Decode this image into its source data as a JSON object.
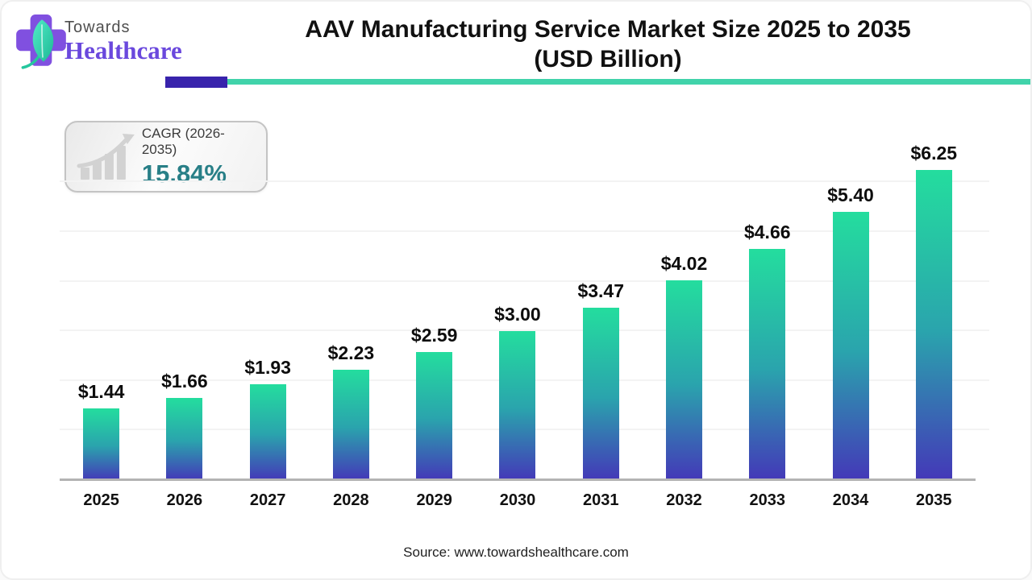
{
  "brand": {
    "name_line1": "Towards",
    "name_line2": "Healthcare",
    "colors": {
      "cross": "#8050e0",
      "leaf_light": "#52ecc8",
      "leaf_dark": "#1db894",
      "towards_text": "#4f4f4f",
      "healthcare_text": "#6a48dd"
    }
  },
  "header": {
    "title_line1": "AAV Manufacturing Service Market Size 2025 to 2035",
    "title_line2": "(USD Billion)",
    "rule_purple_color": "#3823ac",
    "rule_teal_color": "#41d3aa"
  },
  "cagr_badge": {
    "label": "CAGR (2026-2035)",
    "value": "15.84%",
    "value_color": "#287f87",
    "icon": "growth-chart-icon"
  },
  "chart_data": {
    "type": "bar",
    "title": "AAV Manufacturing Service Market Size 2025 to 2035 (USD Billion)",
    "unit": "USD Billion",
    "categories": [
      "2025",
      "2026",
      "2027",
      "2028",
      "2029",
      "2030",
      "2031",
      "2032",
      "2033",
      "2034",
      "2035"
    ],
    "values": [
      1.44,
      1.66,
      1.93,
      2.23,
      2.59,
      3.0,
      3.47,
      4.02,
      4.66,
      5.4,
      6.25
    ],
    "value_labels": [
      "$1.44",
      "$1.66",
      "$1.93",
      "$2.23",
      "$2.59",
      "$3.00",
      "$3.47",
      "$4.02",
      "$4.66",
      "$5.40",
      "$6.25"
    ],
    "xlabel": "",
    "ylabel": "",
    "ylim": [
      0,
      6.9
    ],
    "gridline_values": [
      1,
      2,
      3,
      4,
      5,
      6
    ],
    "grid": "horizontal, faint, unlabeled",
    "legend": "none",
    "bar_color_top": "#24dd9e",
    "bar_color_bottom": "#4438b8"
  },
  "footer": {
    "source": "Source: www.towardshealthcare.com"
  }
}
